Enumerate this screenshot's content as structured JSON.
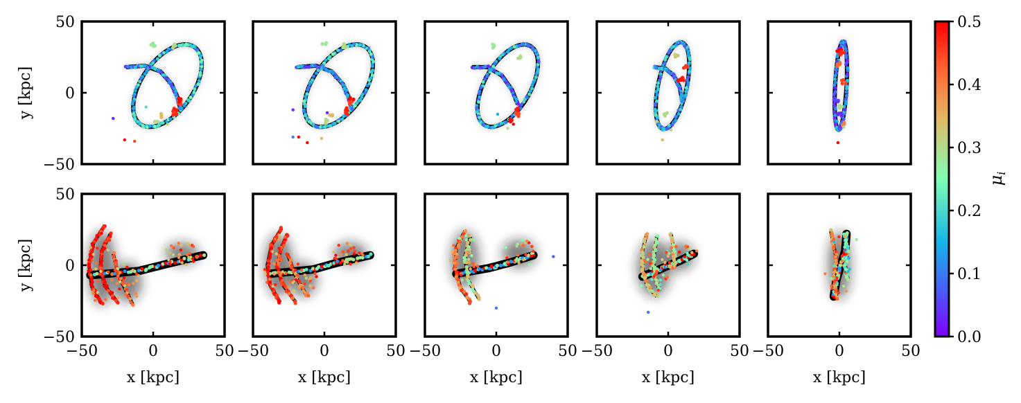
{
  "figure": {
    "colorbar": {
      "label": "μ_i",
      "label_main": "μ",
      "label_sub": "i",
      "range": [
        0.0,
        0.5
      ],
      "ticks": [
        "0.0",
        "0.1",
        "0.2",
        "0.3",
        "0.4",
        "0.5"
      ],
      "tick_values": [
        0.0,
        0.1,
        0.2,
        0.3,
        0.4,
        0.5
      ],
      "colormap": "rainbow"
    },
    "xlabel": "x [kpc]",
    "ylabel": "y [kpc]",
    "x_tick_labels": [
      "−50",
      "0",
      "50"
    ],
    "y_tick_labels": [
      "50",
      "0",
      "−50"
    ]
  },
  "chart_data": [
    {
      "type": "scatter",
      "panel": "top-1",
      "xlim": [
        -50,
        50
      ],
      "ylim": [
        -50,
        50
      ],
      "xlabel": "",
      "ylabel": "y [kpc]",
      "loops": [
        {
          "kind": "ellipse",
          "cx": 10,
          "cy": 5,
          "rx": 18,
          "ry": 33,
          "rot": -35,
          "mu": 0.17
        },
        {
          "kind": "arc",
          "points": [
            [
              -19,
              18
            ],
            [
              -6,
              19
            ],
            [
              5,
              15
            ],
            [
              13,
              6
            ],
            [
              17,
              -3
            ],
            [
              19,
              -11
            ]
          ],
          "mu": 0.12
        }
      ],
      "highlights": [
        [
          15,
          -12,
          0.48
        ],
        [
          18,
          -7,
          0.45
        ],
        [
          19,
          -5,
          0.5
        ],
        [
          15,
          -14,
          0.47
        ],
        [
          2,
          -20,
          0.3
        ],
        [
          5,
          -16,
          0.34
        ],
        [
          14,
          33,
          0.3
        ],
        [
          0,
          34,
          0.28
        ]
      ],
      "points": [
        [
          -28,
          -18,
          0.03
        ],
        [
          -20,
          -33,
          0.5
        ],
        [
          -13,
          -34,
          0.45
        ],
        [
          10,
          -22,
          0.3
        ],
        [
          -5,
          -10,
          0.2
        ]
      ]
    },
    {
      "type": "scatter",
      "panel": "top-2",
      "xlim": [
        -50,
        50
      ],
      "ylim": [
        -50,
        50
      ],
      "xlabel": "",
      "ylabel": "",
      "loops": [
        {
          "kind": "ellipse",
          "cx": 10,
          "cy": 5,
          "rx": 18,
          "ry": 33,
          "rot": -35,
          "mu": 0.17
        },
        {
          "kind": "arc",
          "points": [
            [
              -19,
              18
            ],
            [
              -6,
              19
            ],
            [
              5,
              15
            ],
            [
              13,
              6
            ],
            [
              17,
              -3
            ],
            [
              19,
              -11
            ]
          ],
          "mu": 0.12
        }
      ],
      "highlights": [
        [
          15,
          -12,
          0.48
        ],
        [
          18,
          -7,
          0.45
        ],
        [
          19,
          -5,
          0.5
        ],
        [
          15,
          -14,
          0.47
        ],
        [
          2,
          -20,
          0.3
        ],
        [
          5,
          -16,
          0.34
        ],
        [
          14,
          33,
          0.3
        ],
        [
          0,
          34,
          0.28
        ]
      ],
      "points": [
        [
          -22,
          -12,
          0.03
        ],
        [
          -22,
          -31,
          0.1
        ],
        [
          -18,
          -31,
          0.5
        ],
        [
          -12,
          -35,
          0.5
        ],
        [
          2,
          -14,
          0.03
        ],
        [
          -2,
          -32,
          0.35
        ],
        [
          10,
          -20,
          0.3
        ]
      ]
    },
    {
      "type": "scatter",
      "panel": "top-3",
      "xlim": [
        -50,
        50
      ],
      "ylim": [
        -50,
        50
      ],
      "xlabel": "",
      "ylabel": "",
      "loops": [
        {
          "kind": "ellipse",
          "cx": 8,
          "cy": 5,
          "rx": 16,
          "ry": 32,
          "rot": -30,
          "mu": 0.15
        },
        {
          "kind": "arc",
          "points": [
            [
              -17,
              18
            ],
            [
              -6,
              18
            ],
            [
              4,
              12
            ],
            [
              11,
              2
            ],
            [
              15,
              -8
            ]
          ],
          "mu": 0.1
        }
      ],
      "highlights": [
        [
          14,
          -12,
          0.48
        ],
        [
          15,
          -15,
          0.45
        ],
        [
          10,
          -20,
          0.5
        ],
        [
          16,
          25,
          0.3
        ],
        [
          -3,
          33,
          0.28
        ]
      ],
      "points": [
        [
          1,
          -15,
          0.15
        ],
        [
          12,
          -22,
          0.5
        ],
        [
          8,
          -25,
          0.3
        ]
      ]
    },
    {
      "type": "scatter",
      "panel": "top-4",
      "xlim": [
        -50,
        50
      ],
      "ylim": [
        -50,
        50
      ],
      "xlabel": "",
      "ylabel": "",
      "loops": [
        {
          "kind": "ellipse",
          "cx": 3,
          "cy": 5,
          "rx": 10,
          "ry": 31,
          "rot": -12,
          "mu": 0.14
        },
        {
          "kind": "arc",
          "points": [
            [
              -10,
              18
            ],
            [
              -2,
              17
            ],
            [
              4,
              12
            ],
            [
              8,
              4
            ],
            [
              10,
              -6
            ]
          ],
          "mu": 0.12
        }
      ],
      "highlights": [
        [
          8,
          8,
          0.5
        ],
        [
          10,
          10,
          0.48
        ],
        [
          6,
          26,
          0.32
        ],
        [
          12,
          18,
          0.46
        ],
        [
          -2,
          -15,
          0.3
        ]
      ],
      "points": [
        [
          -4,
          -33,
          0.35
        ],
        [
          -8,
          -20,
          0.3
        ],
        [
          2,
          -26,
          0.3
        ]
      ]
    },
    {
      "type": "scatter",
      "panel": "top-5",
      "xlim": [
        -50,
        50
      ],
      "ylim": [
        -50,
        50
      ],
      "xlabel": "",
      "ylabel": "",
      "loops": [
        {
          "kind": "ellipse",
          "cx": 1,
          "cy": 5,
          "rx": 4,
          "ry": 31,
          "rot": -3,
          "mu": 0.1
        }
      ],
      "highlights": [
        [
          0,
          30,
          0.5
        ],
        [
          2,
          28,
          0.47
        ],
        [
          -1,
          20,
          0.42
        ],
        [
          3,
          8,
          0.45
        ],
        [
          1,
          -10,
          0.3
        ],
        [
          -2,
          -5,
          0.05
        ],
        [
          0,
          -15,
          0.03
        ],
        [
          2,
          -22,
          0.4
        ]
      ],
      "points": [
        [
          -1,
          -35,
          0.5
        ],
        [
          3,
          -24,
          0.3
        ]
      ]
    },
    {
      "type": "scatter",
      "panel": "bottom-1",
      "xlim": [
        -50,
        50
      ],
      "ylim": [
        -50,
        50
      ],
      "xlabel": "x [kpc]",
      "ylabel": "y [kpc]",
      "bar": [
        [
          -44,
          -7
        ],
        [
          -10,
          -4
        ],
        [
          10,
          1
        ],
        [
          35,
          7
        ]
      ],
      "arcs": [
        {
          "points": [
            [
              -34,
              28
            ],
            [
              -42,
              15
            ],
            [
              -45,
              0
            ],
            [
              -43,
              -15
            ],
            [
              -36,
              -27
            ]
          ],
          "mu": 0.5
        },
        {
          "points": [
            [
              -30,
              22
            ],
            [
              -36,
              10
            ],
            [
              -37,
              -2
            ],
            [
              -34,
              -14
            ],
            [
              -25,
              -26
            ]
          ],
          "mu": 0.48
        },
        {
          "points": [
            [
              -28,
              8
            ],
            [
              -24,
              -8
            ],
            [
              -14,
              -28
            ]
          ],
          "mu": 0.42
        }
      ],
      "blobs": [
        [
          20,
          8,
          12,
          8
        ],
        [
          -36,
          -2,
          10,
          26
        ],
        [
          -18,
          -12,
          10,
          14
        ]
      ],
      "mu_range": [
        0.3,
        0.5
      ]
    },
    {
      "type": "scatter",
      "panel": "bottom-2",
      "xlim": [
        -50,
        50
      ],
      "ylim": [
        -50,
        50
      ],
      "xlabel": "x [kpc]",
      "ylabel": "",
      "bar": [
        [
          -38,
          -6
        ],
        [
          -8,
          -3
        ],
        [
          10,
          2
        ],
        [
          32,
          7
        ]
      ],
      "arcs": [
        {
          "points": [
            [
              -30,
              26
            ],
            [
              -37,
              14
            ],
            [
              -40,
              0
            ],
            [
              -38,
              -14
            ],
            [
              -31,
              -26
            ]
          ],
          "mu": 0.5
        },
        {
          "points": [
            [
              -26,
              22
            ],
            [
              -31,
              10
            ],
            [
              -33,
              -2
            ],
            [
              -29,
              -14
            ],
            [
              -20,
              -26
            ]
          ],
          "mu": 0.45
        },
        {
          "points": [
            [
              -26,
              8
            ],
            [
              -20,
              -8
            ],
            [
              -12,
              -22
            ]
          ],
          "mu": 0.42
        }
      ],
      "blobs": [
        [
          18,
          8,
          12,
          8
        ],
        [
          -32,
          0,
          10,
          22
        ],
        [
          -15,
          -10,
          10,
          12
        ]
      ],
      "mu_range": [
        0.3,
        0.5
      ]
    },
    {
      "type": "scatter",
      "panel": "bottom-3",
      "xlim": [
        -50,
        50
      ],
      "ylim": [
        -50,
        50
      ],
      "xlabel": "x [kpc]",
      "ylabel": "",
      "bar": [
        [
          -28,
          -6
        ],
        [
          -5,
          -2
        ],
        [
          10,
          2
        ],
        [
          26,
          7
        ]
      ],
      "arcs": [
        {
          "points": [
            [
              -22,
              24
            ],
            [
              -28,
              12
            ],
            [
              -29,
              -2
            ],
            [
              -25,
              -16
            ],
            [
              -18,
              -26
            ]
          ],
          "mu": 0.42
        },
        {
          "points": [
            [
              -18,
              20
            ],
            [
              -22,
              6
            ],
            [
              -20,
              -10
            ],
            [
              -12,
              -24
            ]
          ],
          "mu": 0.3
        }
      ],
      "blobs": [
        [
          16,
          8,
          12,
          10
        ],
        [
          -22,
          4,
          10,
          20
        ]
      ],
      "extra_points": [
        [
          40,
          6,
          0.08
        ],
        [
          0,
          -30,
          0.1
        ]
      ],
      "mu_range": [
        0.25,
        0.5
      ]
    },
    {
      "type": "scatter",
      "panel": "bottom-4",
      "xlim": [
        -50,
        50
      ],
      "ylim": [
        -50,
        50
      ],
      "xlabel": "x [kpc]",
      "ylabel": "",
      "bar": [
        [
          -18,
          -8
        ],
        [
          -4,
          -2
        ],
        [
          8,
          3
        ],
        [
          18,
          8
        ]
      ],
      "arcs": [
        {
          "points": [
            [
              -15,
              22
            ],
            [
              -18,
              10
            ],
            [
              -18,
              -2
            ],
            [
              -15,
              -14
            ],
            [
              -8,
              -22
            ]
          ],
          "mu": 0.35
        },
        {
          "points": [
            [
              -8,
              20
            ],
            [
              -10,
              6
            ],
            [
              -10,
              -6
            ],
            [
              -6,
              -18
            ]
          ],
          "mu": 0.28
        },
        {
          "points": [
            [
              2,
              22
            ],
            [
              4,
              10
            ],
            [
              5,
              0
            ]
          ],
          "mu": 0.3
        }
      ],
      "blobs": [
        [
          -10,
          -2,
          12,
          20
        ],
        [
          8,
          6,
          10,
          10
        ]
      ],
      "extra_points": [
        [
          -14,
          -33,
          0.1
        ],
        [
          20,
          10,
          0.4
        ]
      ],
      "mu_range": [
        0.2,
        0.5
      ]
    },
    {
      "type": "scatter",
      "panel": "bottom-5",
      "xlim": [
        -50,
        50
      ],
      "ylim": [
        -50,
        50
      ],
      "xlabel": "x [kpc]",
      "ylabel": "",
      "bar": [
        [
          -4,
          -22
        ],
        [
          -2,
          -10
        ],
        [
          1,
          0
        ],
        [
          4,
          10
        ],
        [
          5,
          22
        ]
      ],
      "arcs": [
        {
          "points": [
            [
              -6,
              24
            ],
            [
              -4,
              14
            ],
            [
              -2,
              4
            ],
            [
              -4,
              -8
            ],
            [
              -2,
              -24
            ]
          ],
          "mu": 0.4
        },
        {
          "points": [
            [
              4,
              22
            ],
            [
              6,
              10
            ],
            [
              4,
              0
            ],
            [
              6,
              -10
            ]
          ],
          "mu": 0.25
        }
      ],
      "blobs": [
        [
          0,
          0,
          8,
          24
        ]
      ],
      "extra_points": [
        [
          12,
          18,
          0.28
        ],
        [
          -10,
          -6,
          0.4
        ]
      ],
      "mu_range": [
        0.15,
        0.5
      ]
    }
  ]
}
